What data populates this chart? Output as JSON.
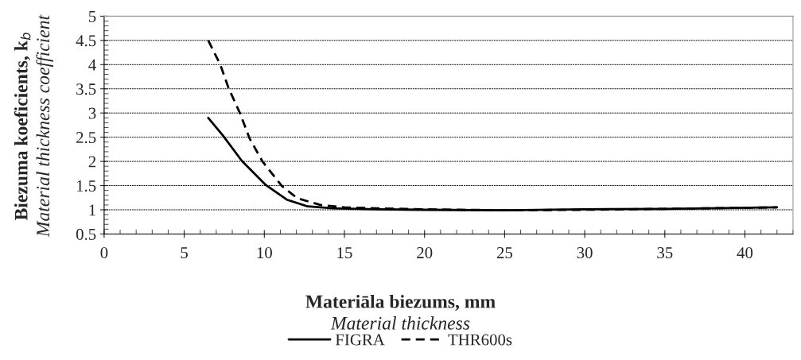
{
  "chart_data": {
    "type": "line",
    "xlabel": "Materiāla biezums, mm\nMaterial thickness",
    "ylabel": "Biezuma koeficients, k$_{b}$\nMaterial thickness coefficient",
    "xlim": [
      0,
      43
    ],
    "xticks": [
      0,
      5,
      10,
      15,
      20,
      25,
      30,
      35,
      40
    ],
    "ylim": [
      0.5,
      5
    ],
    "yticks": [
      0.5,
      1,
      1.5,
      2,
      2.5,
      3,
      3.5,
      4,
      4.5,
      5
    ],
    "grid": "y",
    "legend": "bottom",
    "series": [
      {
        "name": "FIGRA",
        "color": "#000000",
        "line_style": "solid",
        "x": [
          6.5,
          7.4,
          8.6,
          10.1,
          11.4,
          12.7,
          14.3,
          17,
          20,
          25,
          30,
          35,
          42
        ],
        "values": [
          2.9,
          2.54,
          2.01,
          1.51,
          1.21,
          1.07,
          1.03,
          1.01,
          1.0,
          0.99,
          1.01,
          1.02,
          1.05
        ]
      },
      {
        "name": "THR600s",
        "color": "#000000",
        "line_style": "dashed",
        "x": [
          6.5,
          7.25,
          7.75,
          8.5,
          9.07,
          9.9,
          11.1,
          12.05,
          13.5,
          15.0,
          17,
          20,
          25,
          30,
          35,
          42
        ],
        "values": [
          4.5,
          4.0,
          3.53,
          2.98,
          2.48,
          1.99,
          1.49,
          1.24,
          1.1,
          1.05,
          1.03,
          1.01,
          0.99,
          1.0,
          1.02,
          1.05
        ]
      }
    ]
  }
}
